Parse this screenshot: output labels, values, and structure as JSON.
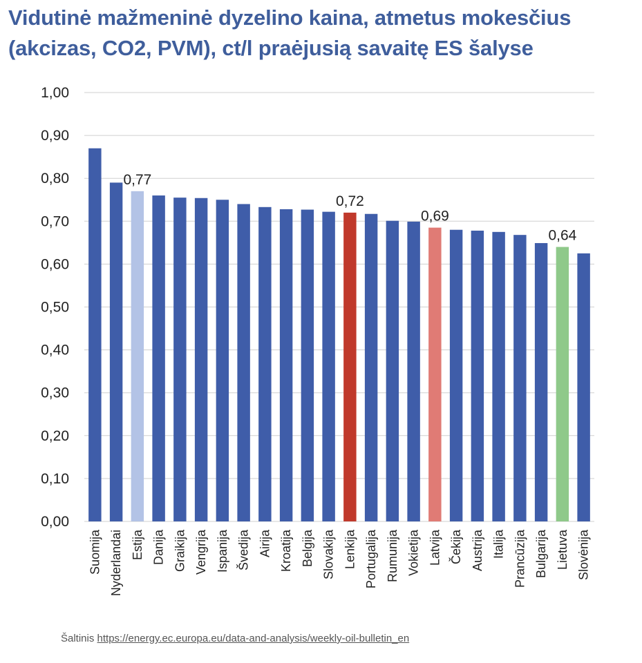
{
  "title_lines": [
    "Vidutinė mažmeninė dyzelino kaina, atmetus mokesčius",
    "(akcizas, CO2, PVM), ct/l praėjusią savaitę ES šalyse"
  ],
  "source": {
    "label": "Šaltinis",
    "url": "https://energy.ec.europa.eu/data-and-analysis/weekly-oil-bulletin_en"
  },
  "colors": {
    "default": "#3f5da9",
    "Estija": "#b3c3e6",
    "Lenkija": "#c0392b",
    "Latvija": "#e07b75",
    "Lietuva": "#8fc98a",
    "grid": "#cfcfcf",
    "title": "#3f5e9c"
  },
  "chart_data": {
    "type": "bar",
    "title": "Vidutinė mažmeninė dyzelino kaina, atmetus mokesčius (akcizas, CO2, PVM), ct/l praėjusią savaitę ES šalyse",
    "xlabel": "",
    "ylabel": "",
    "ylim": [
      0,
      1.0
    ],
    "y_ticks": [
      "0,00",
      "0,10",
      "0,20",
      "0,30",
      "0,40",
      "0,50",
      "0,60",
      "0,70",
      "0,80",
      "0,90",
      "1,00"
    ],
    "grid": true,
    "categories": [
      "Suomija",
      "Nyderlandai",
      "Estija",
      "Danija",
      "Graikija",
      "Vengrija",
      "Ispanija",
      "Švedija",
      "Airija",
      "Kroatija",
      "Belgija",
      "Slovakija",
      "Lenkija",
      "Portugalija",
      "Rumunija",
      "Vokietija",
      "Latvija",
      "Čekija",
      "Austrija",
      "Italija",
      "Prancūzija",
      "Bulgarija",
      "Lietuva",
      "Slovėnija"
    ],
    "values": [
      0.87,
      0.79,
      0.77,
      0.76,
      0.755,
      0.754,
      0.75,
      0.74,
      0.733,
      0.728,
      0.727,
      0.722,
      0.72,
      0.717,
      0.701,
      0.699,
      0.685,
      0.68,
      0.678,
      0.675,
      0.668,
      0.649,
      0.64,
      0.625
    ],
    "data_labels": [
      {
        "category": "Estija",
        "text": "0,77"
      },
      {
        "category": "Lenkija",
        "text": "0,72"
      },
      {
        "category": "Latvija",
        "text": "0,69"
      },
      {
        "category": "Lietuva",
        "text": "0,64"
      }
    ]
  }
}
